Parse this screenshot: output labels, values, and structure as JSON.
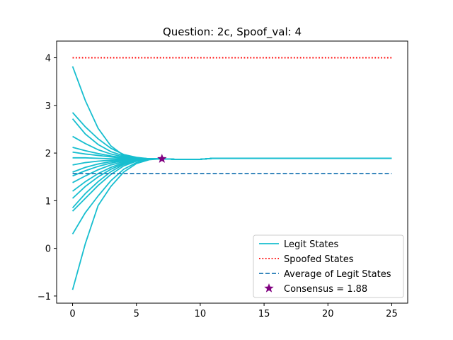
{
  "chart_data": {
    "type": "line",
    "title": "Question: 2c, Spoof_val: 4",
    "xlabel": "",
    "ylabel": "",
    "xlim": [
      -1.25,
      26.25
    ],
    "ylim": [
      -1.15,
      4.35
    ],
    "xticks": [
      0,
      5,
      10,
      15,
      20,
      25
    ],
    "yticks": [
      -1,
      0,
      1,
      2,
      3,
      4
    ],
    "grid": false,
    "legend_position": "lower-right",
    "colors": {
      "legit": "#17becf",
      "spoofed": "#ff0000",
      "average": "#1f77b4",
      "consensus": "#800080"
    },
    "legend": {
      "legit": "Legit States",
      "spoofed": "Spoofed States",
      "average": "Average of Legit States",
      "consensus": "Consensus = 1.88"
    },
    "legit_series": [
      [
        3.82,
        3.1,
        2.52,
        2.15,
        1.95,
        1.9,
        1.88,
        1.88,
        1.87,
        1.87,
        1.87,
        1.89,
        1.89
      ],
      [
        2.85,
        2.55,
        2.3,
        2.1,
        1.97,
        1.91,
        1.88,
        1.88,
        1.87,
        1.87,
        1.87,
        1.89,
        1.89
      ],
      [
        2.72,
        2.4,
        2.18,
        2.03,
        1.94,
        1.9,
        1.88,
        1.88,
        1.87,
        1.87,
        1.87,
        1.89,
        1.89
      ],
      [
        2.35,
        2.2,
        2.07,
        1.98,
        1.92,
        1.89,
        1.88,
        1.88,
        1.87,
        1.87,
        1.87,
        1.89,
        1.89
      ],
      [
        2.12,
        2.05,
        1.99,
        1.94,
        1.9,
        1.88,
        1.88,
        1.88,
        1.87,
        1.87,
        1.87,
        1.89,
        1.89
      ],
      [
        2.02,
        1.98,
        1.95,
        1.92,
        1.89,
        1.88,
        1.88,
        1.88,
        1.87,
        1.87,
        1.87,
        1.89,
        1.89
      ],
      [
        1.9,
        1.9,
        1.89,
        1.88,
        1.88,
        1.88,
        1.88,
        1.88,
        1.87,
        1.87,
        1.87,
        1.89,
        1.89
      ],
      [
        1.75,
        1.8,
        1.83,
        1.85,
        1.86,
        1.87,
        1.88,
        1.88,
        1.87,
        1.87,
        1.87,
        1.89,
        1.89
      ],
      [
        1.6,
        1.7,
        1.77,
        1.82,
        1.85,
        1.87,
        1.88,
        1.88,
        1.87,
        1.87,
        1.87,
        1.89,
        1.89
      ],
      [
        1.52,
        1.63,
        1.72,
        1.79,
        1.84,
        1.86,
        1.88,
        1.88,
        1.87,
        1.87,
        1.87,
        1.89,
        1.89
      ],
      [
        1.38,
        1.52,
        1.65,
        1.75,
        1.82,
        1.86,
        1.88,
        1.88,
        1.87,
        1.87,
        1.87,
        1.89,
        1.89
      ],
      [
        1.2,
        1.4,
        1.57,
        1.7,
        1.8,
        1.85,
        1.88,
        1.88,
        1.87,
        1.87,
        1.87,
        1.89,
        1.89
      ],
      [
        1.05,
        1.3,
        1.5,
        1.66,
        1.78,
        1.85,
        1.88,
        1.88,
        1.87,
        1.87,
        1.87,
        1.89,
        1.89
      ],
      [
        0.85,
        1.15,
        1.4,
        1.61,
        1.76,
        1.84,
        1.87,
        1.88,
        1.87,
        1.87,
        1.87,
        1.89,
        1.89
      ],
      [
        0.78,
        1.05,
        1.32,
        1.55,
        1.73,
        1.83,
        1.87,
        1.88,
        1.87,
        1.87,
        1.87,
        1.89,
        1.89
      ],
      [
        0.3,
        0.75,
        1.1,
        1.42,
        1.66,
        1.8,
        1.87,
        1.88,
        1.87,
        1.87,
        1.87,
        1.89,
        1.89
      ],
      [
        -0.87,
        0.1,
        0.9,
        1.3,
        1.6,
        1.78,
        1.86,
        1.88,
        1.87,
        1.87,
        1.87,
        1.89,
        1.89
      ]
    ],
    "legit_x": [
      0,
      1,
      2,
      3,
      4,
      5,
      6,
      7,
      8,
      9,
      10,
      11,
      25
    ],
    "spoofed": {
      "x": [
        0,
        25
      ],
      "y": [
        4,
        4
      ]
    },
    "average": {
      "x": [
        0,
        25
      ],
      "y": [
        1.57,
        1.57
      ]
    },
    "consensus_point": {
      "x": 7,
      "y": 1.88
    }
  }
}
